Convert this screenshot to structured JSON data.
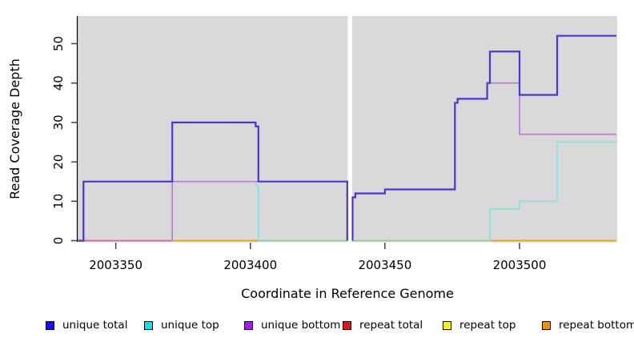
{
  "chart_data": {
    "type": "line",
    "subtype": "step",
    "title": "",
    "xlabel": "Coordinate in Reference Genome",
    "ylabel": "Read Coverage Depth",
    "xlim": [
      2003336,
      2003536
    ],
    "ylim": [
      0,
      57
    ],
    "x_ticks": [
      2003350,
      2003400,
      2003450,
      2003500
    ],
    "y_ticks": [
      0,
      10,
      20,
      30,
      40,
      50
    ],
    "grid": "off",
    "panel_bg": "#d9d9d9",
    "gap_region": {
      "x_start": 2003436.2,
      "x_end": 2003437.8,
      "color": "#ffffff"
    },
    "series": [
      {
        "name": "unique total",
        "color": "#4636e0",
        "width": 2.2,
        "segments": [
          [
            [
              2003336,
              0
            ],
            [
              2003338,
              0
            ],
            [
              2003338,
              15
            ],
            [
              2003371,
              15
            ],
            [
              2003371,
              30
            ],
            [
              2003402,
              30
            ],
            [
              2003402,
              29
            ],
            [
              2003403,
              29
            ],
            [
              2003403,
              15
            ],
            [
              2003436,
              15
            ],
            [
              2003436,
              0
            ]
          ],
          [
            [
              2003438,
              0
            ],
            [
              2003438,
              11
            ],
            [
              2003439,
              11
            ],
            [
              2003439,
              12
            ],
            [
              2003450,
              12
            ],
            [
              2003450,
              13
            ],
            [
              2003476,
              13
            ],
            [
              2003476,
              35
            ],
            [
              2003477,
              35
            ],
            [
              2003477,
              36
            ],
            [
              2003488,
              36
            ],
            [
              2003488,
              40
            ],
            [
              2003489,
              40
            ],
            [
              2003489,
              48
            ],
            [
              2003500,
              48
            ],
            [
              2003500,
              37
            ],
            [
              2003514,
              37
            ],
            [
              2003514,
              52
            ],
            [
              2003536,
              52
            ]
          ]
        ]
      },
      {
        "name": "unique top",
        "color": "#7fe7e4",
        "width": 1.7,
        "segments": [
          [
            [
              2003336,
              0
            ],
            [
              2003338,
              0
            ],
            [
              2003338,
              15
            ],
            [
              2003402,
              15
            ],
            [
              2003402,
              14
            ],
            [
              2003403,
              14
            ],
            [
              2003403,
              0
            ]
          ],
          [
            [
              2003489,
              0
            ],
            [
              2003489,
              8
            ],
            [
              2003500,
              8
            ],
            [
              2003500,
              10
            ],
            [
              2003514,
              10
            ],
            [
              2003514,
              25
            ],
            [
              2003536,
              25
            ]
          ]
        ]
      },
      {
        "name": "unique bottom",
        "color": "#bc78e4",
        "width": 1.7,
        "segments": [
          [
            [
              2003371,
              0
            ],
            [
              2003371,
              15
            ],
            [
              2003436,
              15
            ],
            [
              2003436,
              0
            ]
          ],
          [
            [
              2003438,
              0
            ],
            [
              2003438,
              11
            ],
            [
              2003439,
              11
            ],
            [
              2003439,
              12
            ],
            [
              2003450,
              12
            ],
            [
              2003450,
              13
            ],
            [
              2003476,
              13
            ],
            [
              2003476,
              35
            ],
            [
              2003477,
              35
            ],
            [
              2003477,
              36
            ],
            [
              2003488,
              36
            ],
            [
              2003488,
              40
            ],
            [
              2003500,
              40
            ],
            [
              2003500,
              27
            ],
            [
              2003536,
              27
            ]
          ]
        ]
      },
      {
        "name": "repeat total",
        "color": "#e26d90",
        "width": 1.7,
        "segments": [
          [
            [
              2003336,
              0
            ],
            [
              2003536,
              0
            ]
          ]
        ]
      },
      {
        "name": "repeat top",
        "color": "#f0f000",
        "width": 1.7,
        "segments": [
          [
            [
              2003336,
              0
            ],
            [
              2003536,
              0
            ]
          ]
        ]
      },
      {
        "name": "repeat bottom",
        "color": "#ff9e1f",
        "width": 1.7,
        "segments": [
          [
            [
              2003336,
              0
            ],
            [
              2003536,
              0
            ]
          ]
        ]
      }
    ],
    "baseline_segments": [
      {
        "x1": 2003336,
        "x2": 2003371,
        "color": "#e26d90"
      },
      {
        "x1": 2003371,
        "x2": 2003403,
        "color": "#ff9e1f"
      },
      {
        "x1": 2003403,
        "x2": 2003489,
        "color": "#8ecf9d"
      },
      {
        "x1": 2003489,
        "x2": 2003536,
        "color": "#ff9e1f"
      }
    ]
  },
  "axes": {
    "x_title": "Coordinate in Reference Genome",
    "y_title": "Read Coverage Depth",
    "x_tick_labels": [
      "2003350",
      "2003400",
      "2003450",
      "2003500"
    ],
    "y_tick_labels": [
      "0",
      "10",
      "20",
      "30",
      "40",
      "50"
    ]
  },
  "legend": {
    "items": [
      {
        "label": "unique total",
        "color": "#1212e8"
      },
      {
        "label": "unique top",
        "color": "#00e5e5"
      },
      {
        "label": "unique bottom",
        "color": "#9c1fe8"
      },
      {
        "label": "repeat total",
        "color": "#ee1111"
      },
      {
        "label": "repeat top",
        "color": "#f5f500"
      },
      {
        "label": "repeat bottom",
        "color": "#ee9204"
      }
    ]
  }
}
